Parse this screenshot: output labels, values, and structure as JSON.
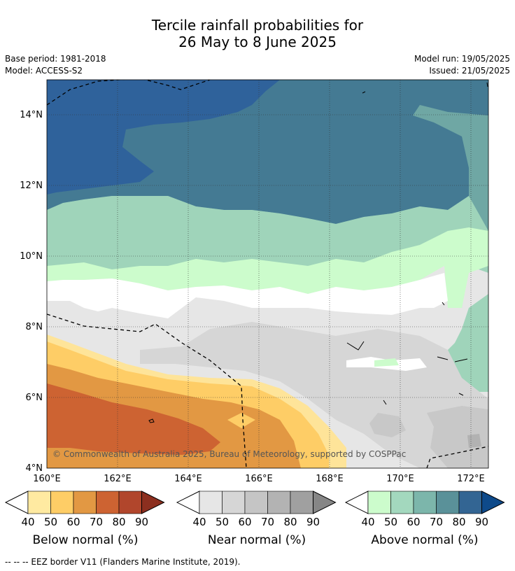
{
  "title": {
    "line1": "Tercile rainfall probabilities for",
    "line2": "26 May to 8 June 2025"
  },
  "meta": {
    "base_period": "Base period: 1981-2018",
    "model": "Model: ACCESS-S2",
    "model_run": "Model run: 19/05/2025",
    "issued": "Issued: 21/05/2025"
  },
  "map": {
    "x_ticks": [
      "160°E",
      "162°E",
      "164°E",
      "166°E",
      "168°E",
      "170°E",
      "172°E"
    ],
    "y_ticks": [
      "14°N",
      "12°N",
      "10°N",
      "8°N",
      "6°N",
      "4°N"
    ],
    "copyright": "© Commonwealth of Australia 2025, Bureau of Meteorology, supported by COSPPac",
    "colors": {
      "above_40": "#ccfccc",
      "above_50": "#9fd4ba",
      "above_60": "#6fa7a4",
      "above_70": "#447a93",
      "above_80": "#2f629b",
      "near_40": "#e6e6e6",
      "near_50": "#d6d6d6",
      "near_60": "#c8c8c8",
      "near_70": "#b2b2b2",
      "below_40": "#fee499",
      "below_50": "#fecd66",
      "below_60": "#e29843",
      "below_70": "#cd6332",
      "below_80": "#b1462c"
    }
  },
  "colorbars": [
    {
      "label": "Below normal (%)",
      "ticks": [
        "40",
        "50",
        "60",
        "70",
        "80",
        "90"
      ],
      "colors": [
        "#ffffff",
        "#ffeaa1",
        "#fecd66",
        "#e29843",
        "#cd6332",
        "#b1462c",
        "#8c2f1f"
      ]
    },
    {
      "label": "Near normal (%)",
      "ticks": [
        "40",
        "50",
        "60",
        "70",
        "80",
        "90"
      ],
      "colors": [
        "#ffffff",
        "#e6e6e6",
        "#d6d6d6",
        "#c5c5c5",
        "#b3b3b3",
        "#a0a0a0",
        "#868686"
      ]
    },
    {
      "label": "Above normal (%)",
      "ticks": [
        "40",
        "50",
        "60",
        "70",
        "80",
        "90"
      ],
      "colors": [
        "#ffffff",
        "#ccfccc",
        "#a3d8be",
        "#7cb6ab",
        "#5a9199",
        "#336593",
        "#0e4a8a"
      ]
    }
  ],
  "footer": "--  --  -- EEZ border V11 (Flanders Marine Institute, 2019)."
}
